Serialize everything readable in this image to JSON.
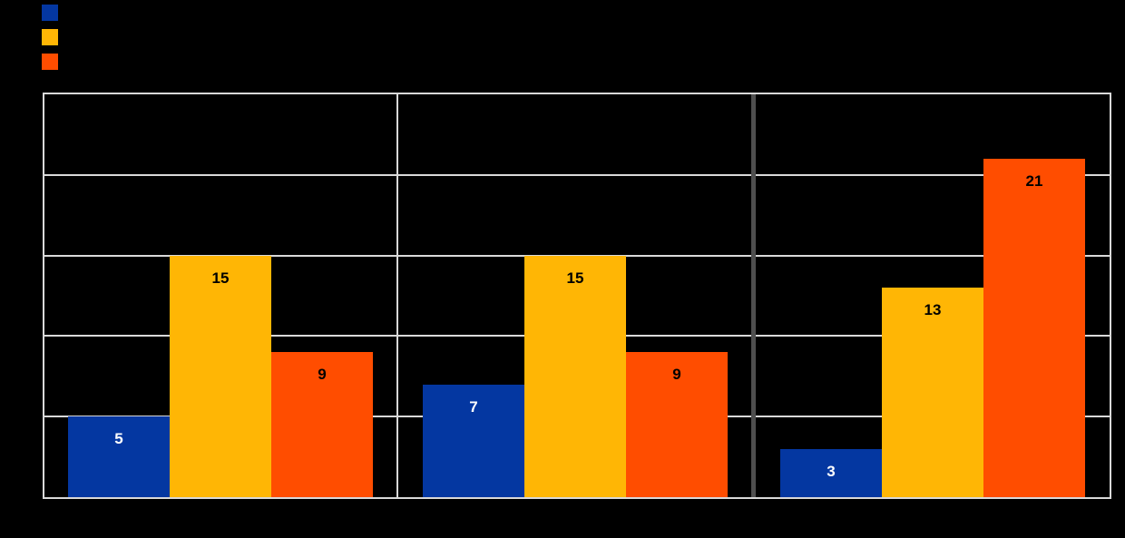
{
  "chart_data": {
    "type": "bar",
    "title": "",
    "categories": [
      "",
      "",
      ""
    ],
    "series": [
      {
        "name": "",
        "color": "#0437A1",
        "label_color": "#FFFFFF",
        "values": [
          5,
          7,
          3
        ]
      },
      {
        "name": "",
        "color": "#FFB605",
        "label_color": "#000000",
        "values": [
          15,
          15,
          13
        ]
      },
      {
        "name": "",
        "color": "#FF4D00",
        "label_color": "#000000",
        "values": [
          9,
          9,
          21
        ]
      }
    ],
    "bar_labels": [
      [
        "5",
        "7",
        "3"
      ],
      [
        "15",
        "15",
        "13"
      ],
      [
        "9",
        "9",
        "21"
      ]
    ],
    "ylim": [
      0,
      25
    ],
    "gridline_values": [
      5,
      10,
      15,
      20
    ],
    "grid": true,
    "legend_position": "top-left",
    "group_dividers": [
      {
        "between": [
          0,
          1
        ],
        "weight": "thin"
      },
      {
        "between": [
          1,
          2
        ],
        "weight": "thick"
      }
    ]
  },
  "colors": {
    "background": "#000000",
    "plot_border": "#D9D9D9",
    "gridline": "#D9D9D9",
    "thin_divider": "#D9D9D9",
    "thick_divider": "#4F4F4F"
  }
}
